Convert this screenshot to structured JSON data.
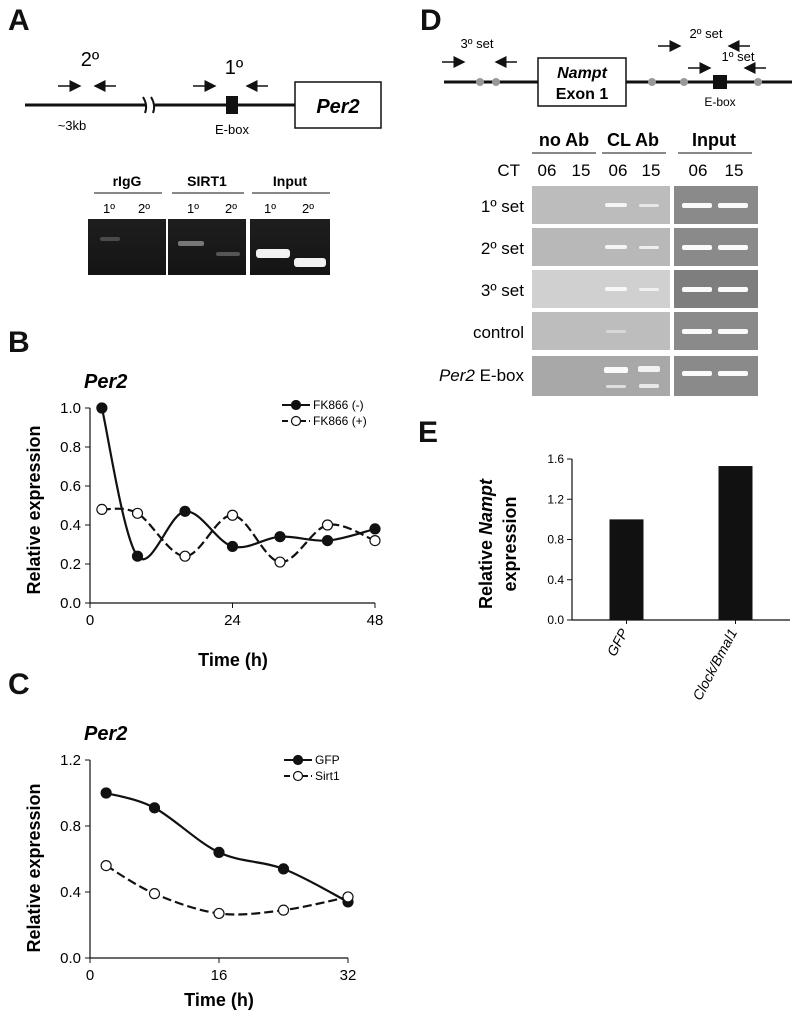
{
  "panels": {
    "a": "A",
    "b": "B",
    "c": "C",
    "d": "D",
    "e": "E"
  },
  "panel_a": {
    "primer_secondary": "2º",
    "primer_primary": "1º",
    "distance": "~3kb",
    "ebox_label": "E-box",
    "gene": "Per2",
    "gel_groups": [
      "rIgG",
      "SIRT1",
      "Input"
    ],
    "lane_labels": [
      "1º",
      "2º",
      "1º",
      "2º",
      "1º",
      "2º"
    ]
  },
  "panel_d": {
    "primer_3": "3º set",
    "primer_2": "2º set",
    "primer_1": "1º set",
    "gene_box_line1": "Nampt",
    "gene_box_line2": "Exon 1",
    "ebox_label": "E-box",
    "groups": [
      "no Ab",
      "CL Ab",
      "Input"
    ],
    "ct_label": "CT",
    "ct_values": [
      "06",
      "15",
      "06",
      "15",
      "06",
      "15"
    ],
    "rows": [
      "1º set",
      "2º set",
      "3º set",
      "control"
    ],
    "row_last_italic": "Per2",
    "row_last_rest": " E-box"
  },
  "chart_data": [
    {
      "type": "line",
      "title": "Per2",
      "xlabel": "Time (h)",
      "ylabel": "Relative expression",
      "xlim": [
        0,
        48
      ],
      "ylim": [
        0,
        1.0
      ],
      "xticks": [
        "0",
        "24",
        "48"
      ],
      "yticks": [
        "0.0",
        "0.2",
        "0.4",
        "0.6",
        "0.8",
        "1.0"
      ],
      "legend_position": "top-right",
      "series": [
        {
          "name": "FK866 (-)",
          "marker": "filled",
          "dash": "solid",
          "x": [
            2,
            8,
            16,
            24,
            32,
            40,
            48
          ],
          "y": [
            1.0,
            0.24,
            0.47,
            0.29,
            0.34,
            0.32,
            0.38
          ]
        },
        {
          "name": "FK866 (+)",
          "marker": "open",
          "dash": "dashed",
          "x": [
            2,
            8,
            16,
            24,
            32,
            40,
            48
          ],
          "y": [
            0.48,
            0.46,
            0.24,
            0.45,
            0.21,
            0.4,
            0.32
          ]
        }
      ]
    },
    {
      "type": "line",
      "title": "Per2",
      "xlabel": "Time (h)",
      "ylabel": "Relative expression",
      "xlim": [
        0,
        32
      ],
      "ylim": [
        0,
        1.2
      ],
      "xticks": [
        "0",
        "16",
        "32"
      ],
      "yticks": [
        "0.0",
        "0.4",
        "0.8",
        "1.2"
      ],
      "legend_position": "top-right",
      "series": [
        {
          "name": "GFP",
          "marker": "filled",
          "dash": "solid",
          "x": [
            2,
            8,
            16,
            24,
            32
          ],
          "y": [
            1.0,
            0.91,
            0.64,
            0.54,
            0.34
          ]
        },
        {
          "name": "Sirt1",
          "marker": "open",
          "dash": "dashed",
          "x": [
            2,
            8,
            16,
            24,
            32
          ],
          "y": [
            0.56,
            0.39,
            0.27,
            0.29,
            0.37
          ]
        }
      ]
    },
    {
      "type": "bar",
      "ylabel_italic": "Nampt",
      "ylabel_line1": "Relative ",
      "ylabel_line2": "expression",
      "categories": [
        "GFP",
        "Clock/Bmal1"
      ],
      "values": [
        1.0,
        1.53
      ],
      "ylim": [
        0,
        1.6
      ],
      "yticks": [
        "0.0",
        "0.4",
        "0.8",
        "1.2",
        "1.6"
      ]
    }
  ]
}
